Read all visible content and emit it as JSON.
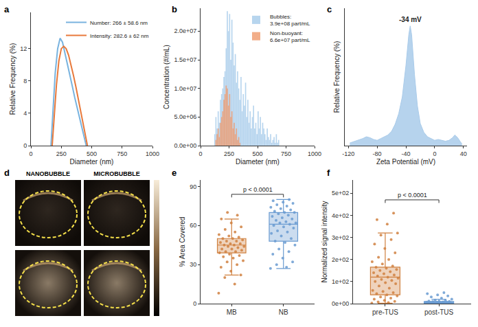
{
  "chart_data": [
    {
      "panel": "a",
      "type": "line",
      "x_label": "Diameter (nm)",
      "y_label": "Relative Frequency (%)",
      "xlim": [
        0,
        1000
      ],
      "xticks": [
        0,
        250,
        500,
        750,
        1000
      ],
      "ylim": [
        0,
        16.5
      ],
      "yticks": [
        0,
        4,
        8,
        12
      ],
      "grid": false,
      "legend": "top right",
      "series": [
        {
          "name": "Number: 266 ± 58.6 nm",
          "color": "#78b3df",
          "x": [
            165,
            180,
            200,
            220,
            240,
            260,
            280,
            300,
            320,
            340,
            360,
            380,
            400,
            420,
            440,
            455
          ],
          "values": [
            0,
            4,
            9,
            12,
            13.3,
            12.8,
            11.5,
            10.2,
            8.8,
            7.4,
            6,
            4.7,
            3.4,
            2.1,
            0.8,
            0
          ]
        },
        {
          "name": "Intensity: 282.6 ± 62 nm",
          "color": "#e8793b",
          "x": [
            175,
            190,
            210,
            230,
            250,
            270,
            290,
            310,
            330,
            350,
            370,
            390,
            410,
            430,
            450,
            465
          ],
          "values": [
            0,
            3,
            7.5,
            10.5,
            12,
            12.3,
            12,
            11.2,
            10,
            8.7,
            7.3,
            5.8,
            4.3,
            2.8,
            1.2,
            0
          ]
        }
      ]
    },
    {
      "panel": "b",
      "type": "histogram",
      "x_label": "Diameter (nm)",
      "y_label": "Concentration (#/mL)",
      "xlim": [
        0,
        1000
      ],
      "xticks": [
        0,
        250,
        500,
        750,
        1000
      ],
      "ylim": [
        0,
        24000000
      ],
      "yticks": [
        {
          "value": 0,
          "label": "0.0e+00"
        },
        {
          "value": 5000000,
          "label": "5.0e+06"
        },
        {
          "value": 10000000,
          "label": "1.0e+07"
        },
        {
          "value": 15000000,
          "label": "1.5e+07"
        },
        {
          "value": 20000000,
          "label": "2.0e+07"
        }
      ],
      "grid": false,
      "legend": "top right",
      "bins": [
        120,
        130,
        140,
        150,
        160,
        170,
        180,
        190,
        200,
        210,
        220,
        230,
        240,
        250,
        260,
        270,
        280,
        290,
        300,
        310,
        320,
        330,
        340,
        350,
        360,
        370,
        380,
        390,
        400,
        410,
        420,
        430,
        440,
        450,
        460,
        470,
        480,
        490,
        500,
        510,
        520,
        530,
        540,
        550,
        560,
        570,
        580,
        590,
        600,
        610,
        620,
        630,
        640,
        650,
        660,
        670,
        680,
        690
      ],
      "series": [
        {
          "name": "Bubbles: 3.9e+08 part/mL",
          "color": "#a6cbeb",
          "values": [
            2000000,
            5000000,
            3000000,
            6000000,
            4000000,
            8000000,
            9000000,
            10000000,
            12000000,
            13000000,
            17000000,
            23500000,
            20000000,
            23000000,
            15000000,
            22000000,
            18000000,
            14000000,
            16000000,
            11000000,
            13000000,
            10000000,
            8000000,
            12000000,
            6000000,
            9000000,
            7000000,
            11000000,
            5000000,
            8000000,
            4000000,
            6000000,
            3000000,
            5000000,
            7000000,
            3000000,
            4000000,
            2000000,
            6000000,
            3000000,
            5000000,
            2000000,
            4000000,
            3000000,
            2000000,
            1000000,
            3000000,
            1500000,
            1000000,
            2000000,
            500000,
            1000000,
            1500000,
            500000,
            2000000,
            500000,
            1000000
          ]
        },
        {
          "name": "Non-buoyant: 6.6e+07 part/mL",
          "color": "#f09a6c",
          "values": [
            0,
            1000000,
            2000000,
            3000000,
            1500000,
            4000000,
            5000000,
            6000000,
            8000000,
            9000000,
            10500000,
            10000000,
            7000000,
            9000000,
            5000000,
            6000000,
            3000000,
            4000000,
            2000000,
            3000000,
            1000000,
            1500000,
            500000,
            0,
            0,
            0,
            0,
            0,
            0,
            0,
            0,
            0,
            0,
            0,
            0,
            0,
            0,
            0,
            0,
            0,
            0,
            0,
            0,
            0,
            0,
            0,
            0,
            0,
            0,
            0,
            0,
            0,
            0,
            0,
            0,
            0,
            0
          ]
        }
      ]
    },
    {
      "panel": "c",
      "type": "area",
      "x_label": "Zeta Potential (mV)",
      "y_label": "Relative Frequency (%)",
      "xlim": [
        -125,
        45
      ],
      "xticks": [
        -120,
        -80,
        -40,
        0,
        40
      ],
      "ylim": [
        0,
        15.5
      ],
      "tick_labels": "x",
      "grid": false,
      "color": "#a9cbea",
      "x": [
        -118,
        -110,
        -100,
        -95,
        -90,
        -85,
        -80,
        -75,
        -70,
        -65,
        -60,
        -55,
        -50,
        -45,
        -40,
        -36,
        -34,
        -32,
        -28,
        -24,
        -20,
        -15,
        -10,
        -5,
        0,
        5,
        10,
        15,
        20,
        25,
        28,
        32,
        36,
        38
      ],
      "values": [
        0.3,
        0.5,
        0.8,
        1.0,
        0.9,
        0.7,
        0.6,
        0.8,
        1.0,
        1.2,
        1.6,
        2.4,
        3.6,
        5.5,
        9,
        12.5,
        13.5,
        12.5,
        8,
        4.5,
        2.5,
        1.5,
        1.0,
        0.8,
        0.6,
        0.7,
        0.6,
        0.5,
        0.6,
        0.9,
        1.2,
        0.9,
        0.4,
        0.2
      ],
      "annotations": [
        {
          "text": "-34 mV",
          "x": -34,
          "y": 13.5
        }
      ]
    },
    {
      "panel": "d",
      "type": "image",
      "labels": [
        "NANOBUBBLE",
        "MICROBUBBLE"
      ]
    },
    {
      "panel": "e",
      "type": "box",
      "y_label": "% Area Covered",
      "categories": [
        "MB",
        "NB"
      ],
      "colors": [
        "#d0803f",
        "#6a9bd1"
      ],
      "ylim": [
        0,
        95
      ],
      "yticks": [
        0,
        30,
        60,
        90
      ],
      "grid": false,
      "q1": [
        39,
        48
      ],
      "median": [
        45,
        61
      ],
      "q3": [
        50,
        70
      ],
      "lowerfence": [
        22,
        27
      ],
      "upperfence": [
        65,
        80
      ],
      "points": [
        [
          8,
          15,
          20,
          22,
          25,
          28,
          30,
          32,
          33,
          35,
          36,
          37,
          38,
          39,
          40,
          40,
          41,
          42,
          42,
          43,
          44,
          44,
          45,
          45,
          46,
          46,
          47,
          48,
          48,
          49,
          50,
          50,
          51,
          52,
          53,
          55,
          57,
          59,
          62,
          65,
          68,
          70
        ],
        [
          27,
          28,
          30,
          32,
          35,
          38,
          40,
          42,
          45,
          47,
          48,
          50,
          52,
          54,
          55,
          56,
          58,
          59,
          60,
          61,
          62,
          62,
          63,
          64,
          65,
          66,
          67,
          68,
          69,
          70,
          70,
          71,
          72,
          73,
          74,
          75,
          76,
          77,
          78,
          79,
          80
        ]
      ],
      "annotations": [
        {
          "text": "p < 0.0001",
          "y": 84
        }
      ]
    },
    {
      "panel": "f",
      "type": "box",
      "y_label": "Normalized signal intensity",
      "categories": [
        "pre-TUS",
        "post-TUS"
      ],
      "colors": [
        "#d0803f",
        "#6a9bd1"
      ],
      "ylim": [
        0,
        560
      ],
      "yticks": [
        {
          "value": 0,
          "label": "0e+00"
        },
        {
          "value": 100,
          "label": "1e+02"
        },
        {
          "value": 200,
          "label": "2e+02"
        },
        {
          "value": 300,
          "label": "3e+02"
        },
        {
          "value": 400,
          "label": "4e+02"
        },
        {
          "value": 500,
          "label": "5e+02"
        }
      ],
      "grid": false,
      "q1": [
        40,
        2
      ],
      "median": [
        120,
        5
      ],
      "q3": [
        165,
        10
      ],
      "lowerfence": [
        2,
        0
      ],
      "upperfence": [
        320,
        20
      ],
      "points": [
        [
          2,
          5,
          8,
          10,
          15,
          20,
          25,
          30,
          35,
          40,
          45,
          50,
          55,
          60,
          70,
          80,
          90,
          95,
          100,
          105,
          110,
          115,
          120,
          125,
          130,
          135,
          140,
          145,
          150,
          155,
          160,
          165,
          170,
          180,
          190,
          200,
          210,
          230,
          250,
          270,
          290,
          310,
          320,
          360,
          380,
          410
        ],
        [
          0,
          0,
          0,
          1,
          1,
          2,
          2,
          3,
          3,
          4,
          5,
          5,
          6,
          7,
          8,
          9,
          10,
          10,
          12,
          14,
          16,
          20,
          25,
          30,
          35,
          40,
          45,
          50
        ]
      ],
      "annotations": [
        {
          "text": "p < 0.0001",
          "y": 470
        }
      ]
    }
  ]
}
